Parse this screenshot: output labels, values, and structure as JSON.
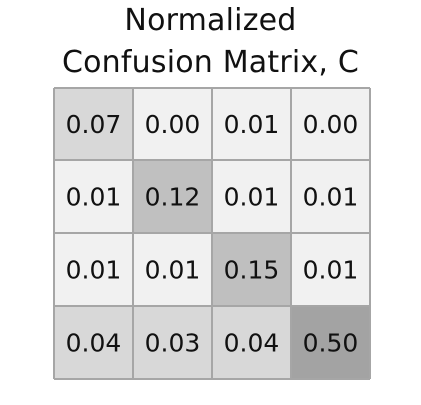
{
  "title_lines": [
    "Normalized",
    "Confusion Matrix, C"
  ],
  "chart_data": {
    "type": "heatmap",
    "title": "Normalized Confusion Matrix, C",
    "rows": 4,
    "cols": 4,
    "values": [
      [
        0.07,
        0.0,
        0.01,
        0.0
      ],
      [
        0.01,
        0.12,
        0.01,
        0.01
      ],
      [
        0.01,
        0.01,
        0.15,
        0.01
      ],
      [
        0.04,
        0.03,
        0.04,
        0.5
      ]
    ],
    "labels": [
      [
        "0.07",
        "0.00",
        "0.01",
        "0.00"
      ],
      [
        "0.01",
        "0.12",
        "0.01",
        "0.01"
      ],
      [
        "0.01",
        "0.01",
        "0.15",
        "0.01"
      ],
      [
        "0.04",
        "0.03",
        "0.04",
        "0.50"
      ]
    ],
    "colors": [
      [
        "#d8d8d8",
        "#f1f1f1",
        "#f1f1f1",
        "#f1f1f1"
      ],
      [
        "#f1f1f1",
        "#c0c0c0",
        "#f1f1f1",
        "#f1f1f1"
      ],
      [
        "#f1f1f1",
        "#f1f1f1",
        "#bfbfbf",
        "#f1f1f1"
      ],
      [
        "#d8d8d8",
        "#d8d8d8",
        "#d8d8d8",
        "#a3a3a3"
      ]
    ],
    "grid_color": "#a6a6a6"
  }
}
